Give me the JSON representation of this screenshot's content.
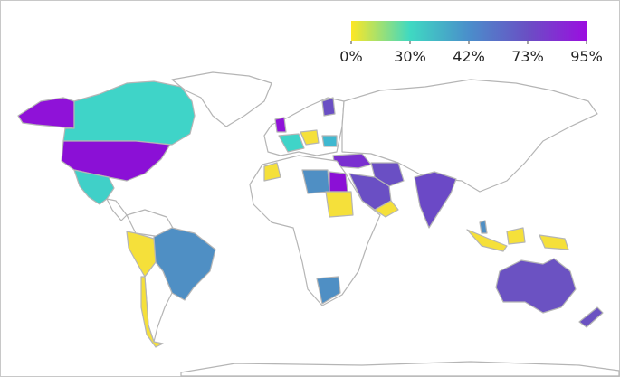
{
  "colorbar": {
    "colors": [
      "#fde725",
      "#3fd9c2",
      "#4a8ecb",
      "#6a4fc4",
      "#9b0ee0"
    ],
    "ticks": [
      {
        "value": 0,
        "label": "0%"
      },
      {
        "value": 30,
        "label": "30%"
      },
      {
        "value": 42,
        "label": "42%"
      },
      {
        "value": 73,
        "label": "73%"
      },
      {
        "value": 95,
        "label": "95%"
      }
    ]
  }
}
